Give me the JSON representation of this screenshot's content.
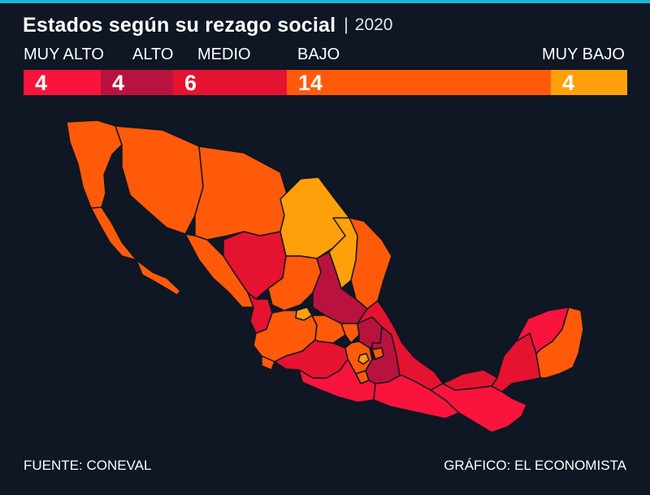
{
  "header": {
    "title": "Estados según su rezago social",
    "separator": "|",
    "year": "2020"
  },
  "legend": [
    {
      "label": "MUY ALTO",
      "count": "4",
      "color": "#f8143c"
    },
    {
      "label": "ALTO",
      "count": "4",
      "color": "#b9123f"
    },
    {
      "label": "MEDIO",
      "count": "6",
      "color": "#e5132f"
    },
    {
      "label": "BAJO",
      "count": "14",
      "color": "#ff5a0a"
    },
    {
      "label": "MUY BAJO",
      "count": "4",
      "color": "#ffa00a"
    }
  ],
  "colors": {
    "background": "#0f1624",
    "accent_rule": "#19b3d8",
    "border": "#0f1624"
  },
  "footer": {
    "source": "FUENTE: CONEVAL",
    "credit": "GRÁFICO: EL ECONOMISTA"
  }
}
